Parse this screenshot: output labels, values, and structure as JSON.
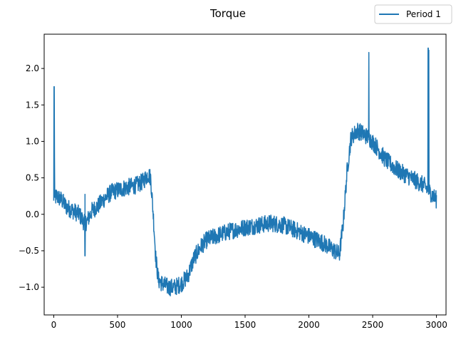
{
  "chart_data": {
    "type": "line",
    "title": "Torque",
    "xlabel": "",
    "ylabel": "",
    "xlim": [
      -75,
      3075
    ],
    "ylim": [
      -1.38,
      2.47
    ],
    "xticks": [
      0,
      500,
      1000,
      1500,
      2000,
      2500,
      3000
    ],
    "yticks": [
      -1.0,
      -0.5,
      0.0,
      0.5,
      1.0,
      1.5,
      2.0
    ],
    "ytick_labels": [
      "−1.0",
      "−0.5",
      "0.0",
      "0.5",
      "1.0",
      "1.5",
      "2.0"
    ],
    "grid": false,
    "legend": {
      "position": "top-right",
      "entries": [
        "Period 1"
      ]
    },
    "series": [
      {
        "name": "Period 1",
        "color": "#1f77b4",
        "noise": 0.12,
        "points": [
          [
            0,
            0.15
          ],
          [
            3,
            1.75
          ],
          [
            8,
            0.2
          ],
          [
            20,
            0.25
          ],
          [
            60,
            0.2
          ],
          [
            100,
            0.1
          ],
          [
            150,
            0.05
          ],
          [
            200,
            0.0
          ],
          [
            240,
            -0.12
          ],
          [
            260,
            -0.1
          ],
          [
            300,
            0.05
          ],
          [
            350,
            0.12
          ],
          [
            400,
            0.22
          ],
          [
            450,
            0.3
          ],
          [
            500,
            0.33
          ],
          [
            550,
            0.36
          ],
          [
            600,
            0.38
          ],
          [
            650,
            0.4
          ],
          [
            700,
            0.45
          ],
          [
            740,
            0.55
          ],
          [
            760,
            0.5
          ],
          [
            780,
            0.0
          ],
          [
            800,
            -0.6
          ],
          [
            820,
            -0.9
          ],
          [
            850,
            -0.95
          ],
          [
            900,
            -1.0
          ],
          [
            950,
            -1.0
          ],
          [
            1000,
            -0.95
          ],
          [
            1050,
            -0.85
          ],
          [
            1100,
            -0.6
          ],
          [
            1150,
            -0.45
          ],
          [
            1200,
            -0.35
          ],
          [
            1300,
            -0.28
          ],
          [
            1400,
            -0.22
          ],
          [
            1500,
            -0.18
          ],
          [
            1600,
            -0.15
          ],
          [
            1700,
            -0.12
          ],
          [
            1800,
            -0.15
          ],
          [
            1900,
            -0.22
          ],
          [
            2000,
            -0.3
          ],
          [
            2100,
            -0.38
          ],
          [
            2200,
            -0.5
          ],
          [
            2240,
            -0.55
          ],
          [
            2270,
            -0.1
          ],
          [
            2300,
            0.6
          ],
          [
            2330,
            1.05
          ],
          [
            2380,
            1.15
          ],
          [
            2430,
            1.1
          ],
          [
            2470,
            1.05
          ],
          [
            2520,
            0.95
          ],
          [
            2600,
            0.75
          ],
          [
            2700,
            0.6
          ],
          [
            2800,
            0.5
          ],
          [
            2900,
            0.4
          ],
          [
            2950,
            0.3
          ],
          [
            3000,
            0.2
          ]
        ],
        "spikes": [
          [
            3,
            1.75
          ],
          [
            245,
            -0.57
          ],
          [
            245,
            0.28
          ],
          [
            2470,
            2.22
          ],
          [
            2935,
            2.28
          ],
          [
            2940,
            2.25
          ]
        ]
      }
    ]
  }
}
